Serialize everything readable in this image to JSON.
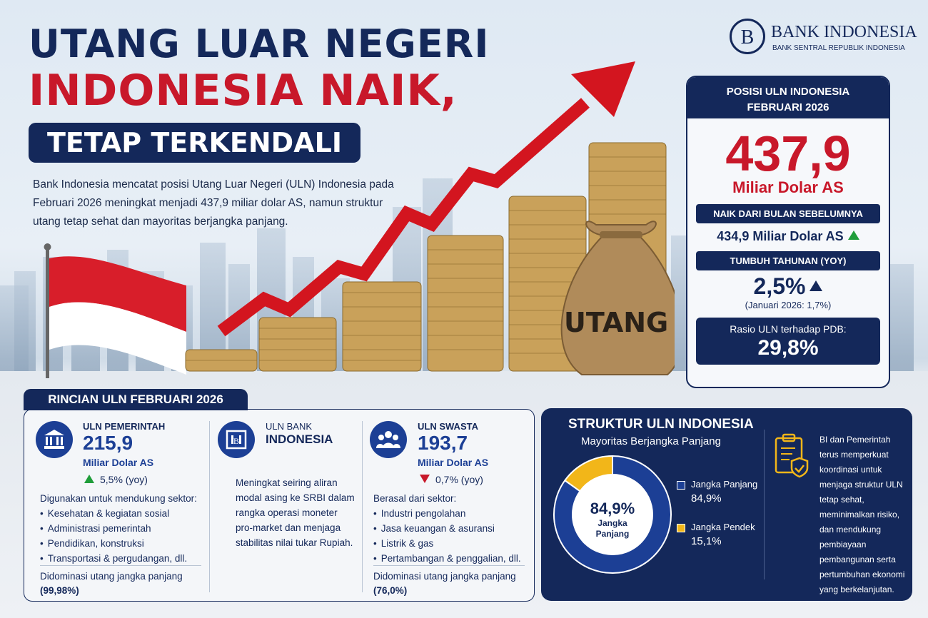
{
  "header": {
    "title_line1": "UTANG LUAR NEGERI",
    "title_line2": "INDONESIA NAIK,",
    "title_line3": "TETAP TERKENDALI",
    "intro": "Bank Indonesia mencatat posisi Utang Luar Negeri (ULN) Indonesia pada Februari 2026 meningkat menjadi 437,9 miliar dolar AS, namun struktur utang tetap sehat dan mayoritas berjangka panjang."
  },
  "logo": {
    "name": "BANK INDONESIA",
    "subtitle": "BANK SENTRAL REPUBLIK INDONESIA"
  },
  "illustration": {
    "bag_label": "UTANG",
    "icons": [
      "indonesia-flag",
      "coin-stacks",
      "red-arrow-up",
      "money-bag"
    ]
  },
  "summary_panel": {
    "heading_line1": "POSISI ULN INDONESIA",
    "heading_line2": "FEBRUARI 2026",
    "value": "437,9",
    "unit": "Miliar Dolar AS",
    "prev_label": "NAIK DARI BULAN SEBELUMNYA",
    "prev_value": "434,9 Miliar Dolar AS",
    "yoy_label": "TUMBUH TAHUNAN (YOY)",
    "yoy_value": "2,5%",
    "yoy_note": "(Januari 2026: 1,7%)",
    "ratio_label": "Rasio ULN terhadap PDB:",
    "ratio_value": "29,8%"
  },
  "rincian": {
    "tab": "RINCIAN ULN FEBRUARI 2026",
    "pemerintah": {
      "title": "ULN PEMERINTAH",
      "value": "215,9",
      "unit": "Miliar Dolar AS",
      "yoy": "5,5% (yoy)",
      "intro": "Digunakan untuk mendukung sektor:",
      "items": [
        "Kesehatan & kegiatan sosial",
        "Administrasi pemerintah",
        "Pendidikan, konstruksi",
        "Transportasi & pergudangan, dll."
      ],
      "foot1": "Didominasi utang jangka panjang",
      "foot2": "(99,98%)"
    },
    "bank": {
      "title1": "ULN BANK",
      "title2": "INDONESIA",
      "text": "Meningkat seiring aliran modal asing ke SRBI dalam rangka operasi moneter pro-market dan menjaga stabilitas nilai tukar Rupiah."
    },
    "swasta": {
      "title": "ULN SWASTA",
      "value": "193,7",
      "unit": "Miliar Dolar AS",
      "yoy": "0,7% (yoy)",
      "intro": "Berasal dari sektor:",
      "items": [
        "Industri pengolahan",
        "Jasa keuangan & asuransi",
        "Listrik & gas",
        "Pertambangan & penggalian, dll."
      ],
      "foot1": "Didominasi utang jangka panjang",
      "foot2": "(76,0%)"
    }
  },
  "struktur": {
    "title": "STRUKTUR ULN INDONESIA",
    "subtitle": "Mayoritas Berjangka Panjang",
    "center_value": "84,9%",
    "center_label1": "Jangka",
    "center_label2": "Panjang",
    "note": "BI dan Pemerintah terus memperkuat koordinasi untuk menjaga struktur ULN tetap sehat, meminimalkan risiko, dan mendukung pembiayaan pembangunan serta pertumbuhan ekonomi yang berkelanjutan.",
    "colors": {
      "long": "#1c3f95",
      "short": "#f2b619"
    }
  },
  "chart_data": {
    "type": "pie",
    "categories": [
      "Jangka Panjang",
      "Jangka Pendek"
    ],
    "values": [
      84.9,
      15.1
    ],
    "labels": [
      "84,9%",
      "15,1%"
    ]
  }
}
